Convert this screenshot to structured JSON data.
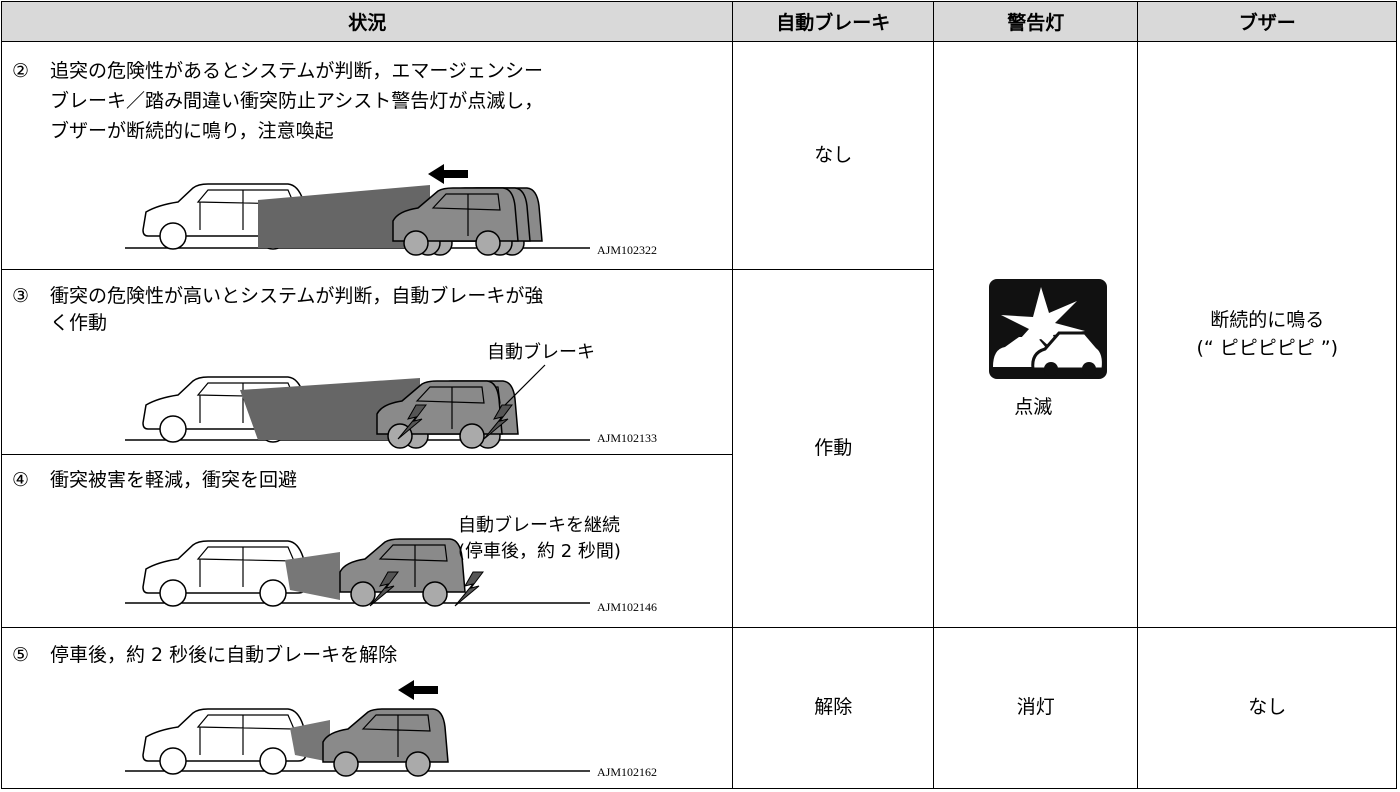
{
  "table": {
    "header": [
      "状況",
      "自動ブレーキ",
      "警告灯",
      "ブザー"
    ],
    "situations": [
      {
        "marker": "②",
        "lines": [
          "追突の危険性があるとシステムが判断，エマージェンシー",
          "ブレーキ／踏み間違い衝突防止アシスト警告灯が点滅し，",
          "ブザーが断続的に鳴り，注意喚起"
        ],
        "code": "AJM102322"
      },
      {
        "marker": "③",
        "lines": [
          "衝突の危険性が高いとシステムが判断，自動ブレーキが強",
          "く作動"
        ],
        "labels": [
          "自動ブレーキ"
        ],
        "code": "AJM102133"
      },
      {
        "marker": "④",
        "lines": [
          "衝突被害を軽減，衝突を回避"
        ],
        "labels": [
          "自動ブレーキを継続",
          "(停車後，約 2 秒間)"
        ],
        "code": "AJM102146"
      },
      {
        "marker": "⑤",
        "lines": [
          "停車後，約 2 秒後に自動ブレーキを解除"
        ],
        "code": "AJM102162"
      }
    ],
    "auto_brake": [
      "なし",
      "作動",
      "解除"
    ],
    "warning_light": [
      "点滅",
      "消灯"
    ],
    "buzzer": [
      [
        "断続的に鳴る",
        "(“ ピピピピピ ”)"
      ],
      [
        "なし"
      ]
    ]
  }
}
